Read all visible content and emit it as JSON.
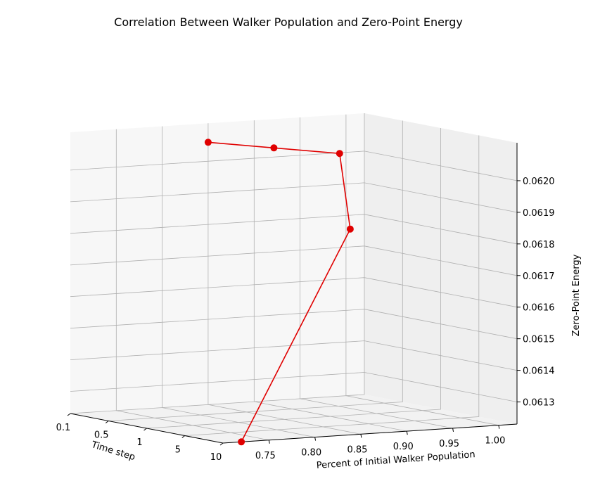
{
  "chart_data": {
    "type": "line-3d",
    "title": "Correlation Between Walker Population and Zero-Point Energy",
    "xlabel": "Time step",
    "ylabel": "Percent of Initial Walker Population",
    "zlabel": "Zero-Point Energy",
    "x_ticks": [
      "0.1",
      "0.5",
      "1",
      "5",
      "10"
    ],
    "y_ticks": [
      "0.75",
      "0.80",
      "0.85",
      "0.90",
      "0.95",
      "1.00"
    ],
    "z_ticks": [
      "0.0613",
      "0.0614",
      "0.0615",
      "0.0616",
      "0.0617",
      "0.0618",
      "0.0619",
      "0.0620"
    ],
    "x_scale": "categorical",
    "grid": true,
    "line_color": "#e00000",
    "points": [
      {
        "time_step": "0.1",
        "percent": 0.85,
        "energy": 0.06206
      },
      {
        "time_step": "0.5",
        "percent": 0.88,
        "energy": 0.06206
      },
      {
        "time_step": "1",
        "percent": 0.91,
        "energy": 0.06206
      },
      {
        "time_step": "5",
        "percent": 0.88,
        "energy": 0.06185
      },
      {
        "time_step": "10",
        "percent": 0.72,
        "energy": 0.06123
      }
    ]
  }
}
